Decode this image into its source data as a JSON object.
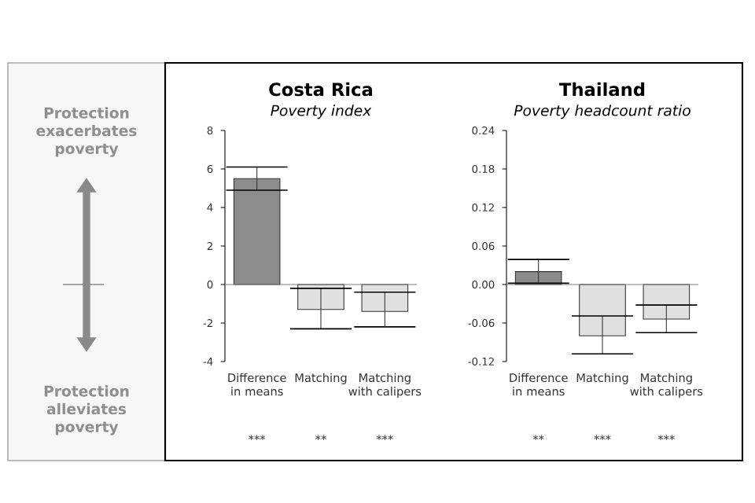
{
  "chart_data": [
    {
      "type": "other",
      "annotations": [
        "Protection exacerbates poverty",
        "Protection alleviates poverty"
      ]
    },
    {
      "type": "bar",
      "title": "Costa Rica",
      "subtitle": "Poverty index",
      "categories": [
        "Difference in means",
        "Matching",
        "Matching with calipers"
      ],
      "values": [
        5.5,
        -1.3,
        -1.4
      ],
      "colors": [
        "#8c8c8c",
        "#e0e0e0",
        "#e0e0e0"
      ],
      "errors": [
        [
          4.9,
          6.1
        ],
        [
          -2.3,
          -0.2
        ],
        [
          -2.2,
          -0.4
        ]
      ],
      "ylim": [
        -4,
        8
      ],
      "yticks": [
        -4,
        -2,
        0,
        2,
        4,
        6,
        8
      ],
      "ref_lines": [
        {
          "axis": "y",
          "value": 0,
          "color": "#808080"
        }
      ],
      "annotations": [
        "***",
        "**",
        "***"
      ]
    },
    {
      "type": "bar",
      "title": "Thailand",
      "subtitle": "Poverty headcount ratio",
      "categories": [
        "Difference in means",
        "Matching",
        "Matching with calipers"
      ],
      "values": [
        0.02,
        -0.08,
        -0.054
      ],
      "colors": [
        "#8c8c8c",
        "#e0e0e0",
        "#e0e0e0"
      ],
      "errors": [
        [
          0.002,
          0.039
        ],
        [
          -0.108,
          -0.049
        ],
        [
          -0.075,
          -0.032
        ]
      ],
      "ylim": [
        -0.12,
        0.24
      ],
      "yticks": [
        -0.12,
        -0.06,
        {
          "value": 0,
          "label": "0.00"
        },
        0.06,
        0.12,
        0.18,
        0.24
      ],
      "ref_lines": [
        {
          "axis": "y",
          "value": 0,
          "color": "#808080"
        }
      ],
      "annotations": [
        "**",
        "***",
        "***"
      ]
    }
  ]
}
